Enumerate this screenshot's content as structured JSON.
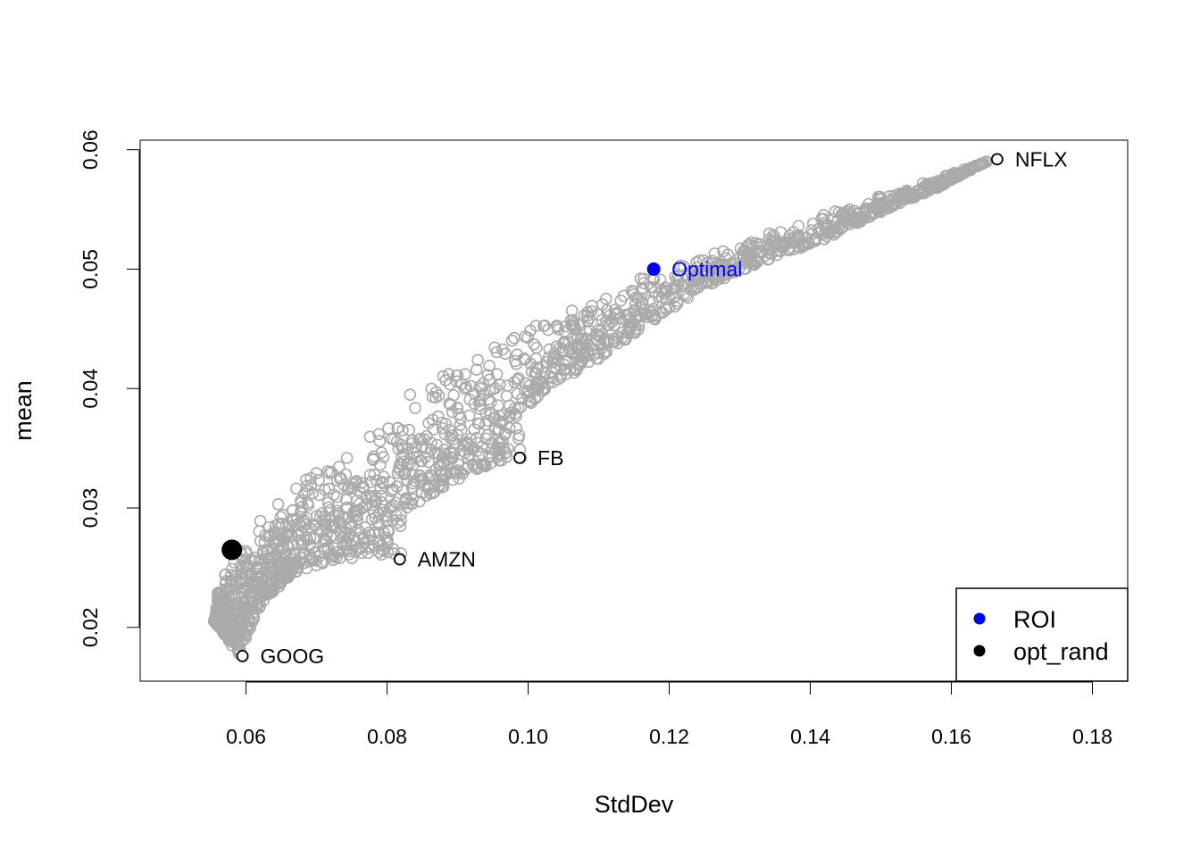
{
  "chart_data": {
    "type": "scatter",
    "title": "",
    "xlabel": "StdDev",
    "ylabel": "mean",
    "xlim": [
      0.045,
      0.185
    ],
    "ylim": [
      0.0155,
      0.0608
    ],
    "x_ticks": [
      0.06,
      0.08,
      0.1,
      0.12,
      0.14,
      0.16,
      0.18
    ],
    "x_tick_labels": [
      "0.06",
      "0.08",
      "0.10",
      "0.12",
      "0.14",
      "0.16",
      "0.18"
    ],
    "y_ticks": [
      0.02,
      0.03,
      0.04,
      0.05,
      0.06
    ],
    "y_tick_labels": [
      "0.02",
      "0.03",
      "0.04",
      "0.05",
      "0.06"
    ],
    "grid": false,
    "random_portfolios": {
      "description_color": "#aaaaaa",
      "frontier": [
        [
          0.0555,
          0.0205
        ],
        [
          0.056,
          0.023
        ],
        [
          0.058,
          0.026
        ],
        [
          0.061,
          0.0285
        ],
        [
          0.065,
          0.031
        ],
        [
          0.07,
          0.0335
        ],
        [
          0.075,
          0.0362
        ],
        [
          0.08,
          0.0385
        ],
        [
          0.087,
          0.0412
        ],
        [
          0.095,
          0.0438
        ],
        [
          0.102,
          0.0458
        ],
        [
          0.11,
          0.0478
        ],
        [
          0.118,
          0.0498
        ],
        [
          0.126,
          0.0516
        ],
        [
          0.134,
          0.0532
        ],
        [
          0.142,
          0.0547
        ],
        [
          0.15,
          0.0562
        ],
        [
          0.158,
          0.0576
        ],
        [
          0.165,
          0.059
        ]
      ],
      "lower_edge": [
        [
          0.0555,
          0.0205
        ],
        [
          0.058,
          0.0185
        ],
        [
          0.059,
          0.0178
        ],
        [
          0.062,
          0.0218
        ],
        [
          0.066,
          0.0242
        ],
        [
          0.07,
          0.0252
        ],
        [
          0.075,
          0.0258
        ],
        [
          0.081,
          0.0262
        ],
        [
          0.082,
          0.0262
        ],
        [
          0.076,
          0.0275
        ],
        [
          0.082,
          0.0295
        ],
        [
          0.088,
          0.0318
        ],
        [
          0.094,
          0.0335
        ],
        [
          0.099,
          0.0342
        ],
        [
          0.096,
          0.0355
        ],
        [
          0.102,
          0.0398
        ],
        [
          0.11,
          0.0425
        ],
        [
          0.118,
          0.0458
        ],
        [
          0.126,
          0.0488
        ],
        [
          0.134,
          0.0508
        ],
        [
          0.142,
          0.0525
        ],
        [
          0.15,
          0.0548
        ],
        [
          0.158,
          0.0568
        ],
        [
          0.165,
          0.059
        ]
      ],
      "count": 1800
    },
    "assets": [
      {
        "name": "NFLX",
        "x": 0.1665,
        "y": 0.0592
      },
      {
        "name": "FB",
        "x": 0.0988,
        "y": 0.0342
      },
      {
        "name": "AMZN",
        "x": 0.0818,
        "y": 0.0257
      },
      {
        "name": "GOOG",
        "x": 0.0595,
        "y": 0.0176
      }
    ],
    "optimal": {
      "name": "Optimal",
      "x": 0.1178,
      "y": 0.05,
      "color": "#0000ff"
    },
    "opt_rand": {
      "x": 0.058,
      "y": 0.0265,
      "color": "#000000"
    },
    "legend": {
      "position": "bottom-right",
      "entries": [
        {
          "label": "ROI",
          "color": "#0000ff"
        },
        {
          "label": "opt_rand",
          "color": "#000000"
        }
      ]
    }
  }
}
